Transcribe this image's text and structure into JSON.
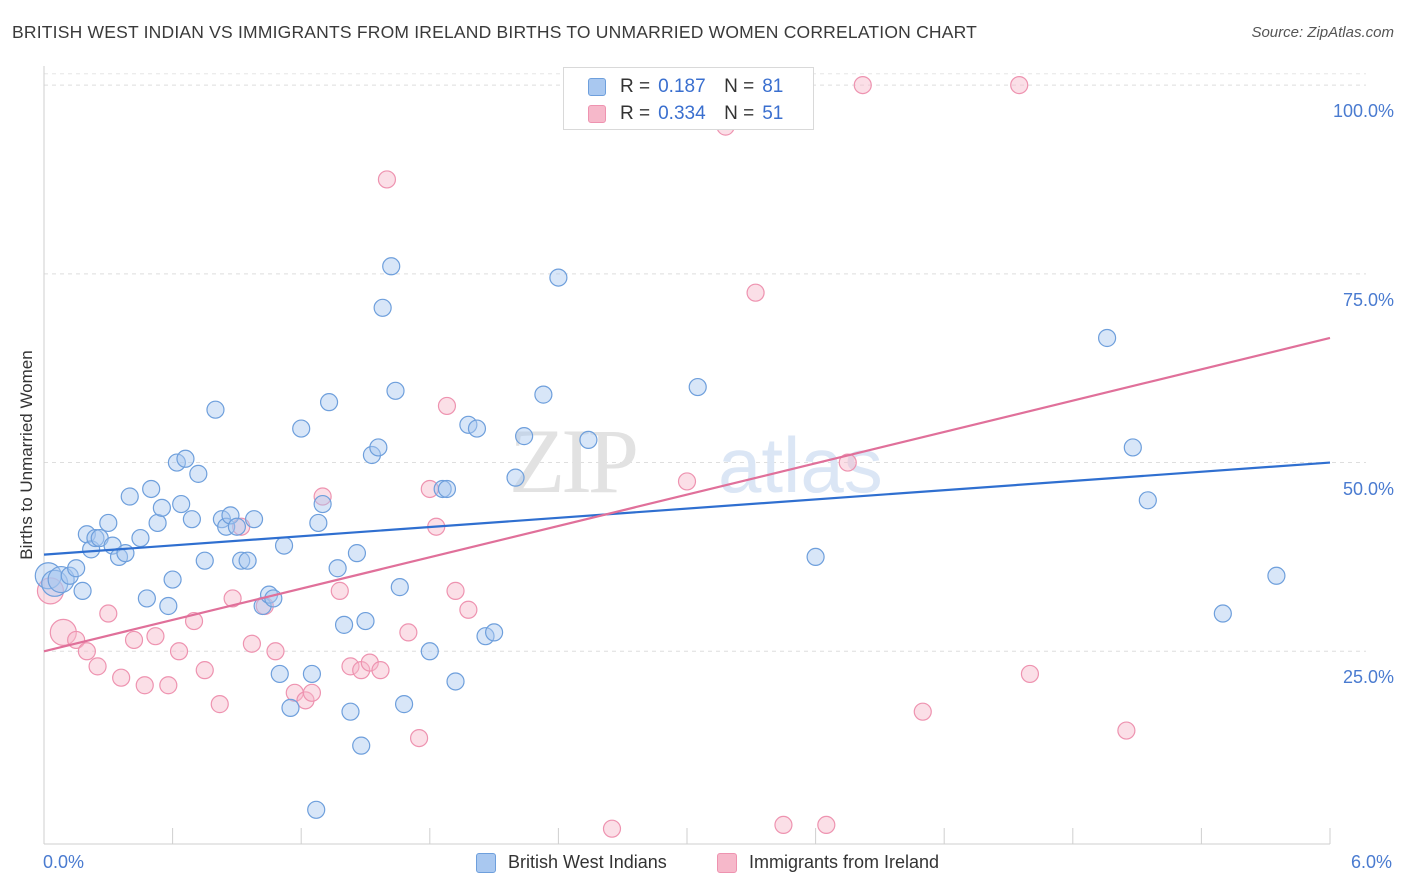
{
  "title": "BRITISH WEST INDIAN VS IMMIGRANTS FROM IRELAND BIRTHS TO UNMARRIED WOMEN CORRELATION CHART",
  "source": "Source: ZipAtlas.com",
  "watermark": {
    "zip": "ZIP",
    "atlas": "atlas"
  },
  "legend_top": [
    {
      "r_label": "R =",
      "r_value": "0.187",
      "n_label": "N =",
      "n_value": "81"
    },
    {
      "r_label": "R =",
      "r_value": "0.334",
      "n_label": "N =",
      "n_value": "51"
    }
  ],
  "legend_bottom": [
    "British West Indians",
    "Immigrants from Ireland"
  ],
  "colors": {
    "blue_fill": "#a9c8f0",
    "blue_stroke": "#6e9fdc",
    "blue_line": "#2f6fd0",
    "pink_fill": "#f6b8ca",
    "pink_stroke": "#ee93b0",
    "pink_line": "#e0709a",
    "tick_text": "#4a7bd0",
    "grid": "#dedede"
  },
  "chart_data": {
    "type": "scatter",
    "title": "BRITISH WEST INDIAN VS IMMIGRANTS FROM IRELAND BIRTHS TO UNMARRIED WOMEN CORRELATION CHART",
    "xlabel": "",
    "ylabel": "Births to Unmarried Women",
    "xlim": [
      0,
      6
    ],
    "ylim": [
      0,
      102
    ],
    "x_tick_labels": [
      "0.0%",
      "6.0%"
    ],
    "y_ticks": [
      25,
      50,
      75,
      100
    ],
    "y_tick_labels": [
      "25.0%",
      "50.0%",
      "75.0%",
      "100.0%"
    ],
    "grid": true,
    "series": [
      {
        "name": "British West Indians",
        "r": 0.187,
        "n": 81,
        "trend": [
          [
            0,
            37.8
          ],
          [
            6,
            50.0
          ]
        ],
        "points": [
          [
            0.02,
            35.0
          ],
          [
            0.05,
            34.0
          ],
          [
            0.08,
            34.5
          ],
          [
            0.12,
            35.0
          ],
          [
            0.15,
            36.0
          ],
          [
            0.18,
            33.0
          ],
          [
            0.2,
            40.5
          ],
          [
            0.22,
            38.5
          ],
          [
            0.24,
            40.0
          ],
          [
            0.26,
            40.0
          ],
          [
            0.3,
            42.0
          ],
          [
            0.32,
            39.0
          ],
          [
            0.35,
            37.5
          ],
          [
            0.38,
            38.0
          ],
          [
            0.4,
            45.5
          ],
          [
            0.45,
            40.0
          ],
          [
            0.48,
            32.0
          ],
          [
            0.5,
            46.5
          ],
          [
            0.53,
            42.0
          ],
          [
            0.55,
            44.0
          ],
          [
            0.58,
            31.0
          ],
          [
            0.6,
            34.5
          ],
          [
            0.62,
            50.0
          ],
          [
            0.64,
            44.5
          ],
          [
            0.66,
            50.5
          ],
          [
            0.69,
            42.5
          ],
          [
            0.72,
            48.5
          ],
          [
            0.75,
            37.0
          ],
          [
            0.8,
            57.0
          ],
          [
            0.83,
            42.5
          ],
          [
            0.85,
            41.5
          ],
          [
            0.87,
            43.0
          ],
          [
            0.9,
            41.5
          ],
          [
            0.92,
            37.0
          ],
          [
            0.95,
            37.0
          ],
          [
            0.98,
            42.5
          ],
          [
            1.02,
            31.0
          ],
          [
            1.05,
            32.5
          ],
          [
            1.07,
            32.0
          ],
          [
            1.1,
            22.0
          ],
          [
            1.12,
            39.0
          ],
          [
            1.15,
            17.5
          ],
          [
            1.2,
            54.5
          ],
          [
            1.25,
            22.0
          ],
          [
            1.28,
            42.0
          ],
          [
            1.3,
            44.5
          ],
          [
            1.33,
            58.0
          ],
          [
            1.37,
            36.0
          ],
          [
            1.4,
            28.5
          ],
          [
            1.43,
            17.0
          ],
          [
            1.46,
            38.0
          ],
          [
            1.48,
            12.5
          ],
          [
            1.5,
            29.0
          ],
          [
            1.53,
            51.0
          ],
          [
            1.56,
            52.0
          ],
          [
            1.58,
            70.5
          ],
          [
            1.62,
            76.0
          ],
          [
            1.64,
            59.5
          ],
          [
            1.66,
            33.5
          ],
          [
            1.68,
            18.0
          ],
          [
            1.8,
            25.0
          ],
          [
            1.86,
            46.5
          ],
          [
            1.88,
            46.5
          ],
          [
            1.92,
            21.0
          ],
          [
            1.98,
            55.0
          ],
          [
            2.02,
            54.5
          ],
          [
            2.06,
            27.0
          ],
          [
            2.1,
            27.5
          ],
          [
            2.2,
            48.0
          ],
          [
            2.24,
            53.5
          ],
          [
            2.33,
            59.0
          ],
          [
            2.4,
            74.5
          ],
          [
            2.54,
            53.0
          ],
          [
            3.05,
            60.0
          ],
          [
            3.6,
            37.5
          ],
          [
            4.96,
            66.5
          ],
          [
            5.08,
            52.0
          ],
          [
            5.15,
            45.0
          ],
          [
            5.5,
            30.0
          ],
          [
            5.75,
            35.0
          ],
          [
            1.27,
            4.0
          ]
        ]
      },
      {
        "name": "Immigrants from Ireland",
        "r": 0.334,
        "n": 51,
        "trend": [
          [
            0,
            25.0
          ],
          [
            6,
            66.5
          ]
        ],
        "points": [
          [
            0.03,
            33.0
          ],
          [
            0.09,
            27.5
          ],
          [
            0.15,
            26.5
          ],
          [
            0.2,
            25.0
          ],
          [
            0.25,
            23.0
          ],
          [
            0.3,
            30.0
          ],
          [
            0.36,
            21.5
          ],
          [
            0.42,
            26.5
          ],
          [
            0.47,
            20.5
          ],
          [
            0.52,
            27.0
          ],
          [
            0.58,
            20.5
          ],
          [
            0.63,
            25.0
          ],
          [
            0.7,
            29.0
          ],
          [
            0.75,
            22.5
          ],
          [
            0.82,
            18.0
          ],
          [
            0.88,
            32.0
          ],
          [
            0.92,
            41.5
          ],
          [
            0.97,
            26.0
          ],
          [
            1.03,
            31.0
          ],
          [
            1.08,
            25.0
          ],
          [
            1.17,
            19.5
          ],
          [
            1.22,
            18.5
          ],
          [
            1.25,
            19.5
          ],
          [
            1.3,
            45.5
          ],
          [
            1.38,
            33.0
          ],
          [
            1.43,
            23.0
          ],
          [
            1.48,
            22.5
          ],
          [
            1.52,
            23.5
          ],
          [
            1.57,
            22.5
          ],
          [
            1.6,
            87.5
          ],
          [
            1.7,
            27.5
          ],
          [
            1.75,
            13.5
          ],
          [
            1.8,
            46.5
          ],
          [
            1.83,
            41.5
          ],
          [
            1.88,
            57.5
          ],
          [
            1.92,
            33.0
          ],
          [
            1.98,
            30.5
          ],
          [
            2.48,
            100.0
          ],
          [
            2.55,
            100.0
          ],
          [
            2.65,
            1.5
          ],
          [
            3.0,
            47.5
          ],
          [
            3.18,
            94.5
          ],
          [
            3.32,
            72.5
          ],
          [
            3.45,
            2.0
          ],
          [
            3.65,
            2.0
          ],
          [
            3.75,
            50.0
          ],
          [
            3.82,
            100.0
          ],
          [
            4.1,
            17.0
          ],
          [
            4.55,
            100.0
          ],
          [
            4.6,
            22.0
          ],
          [
            5.05,
            14.5
          ]
        ]
      }
    ]
  }
}
